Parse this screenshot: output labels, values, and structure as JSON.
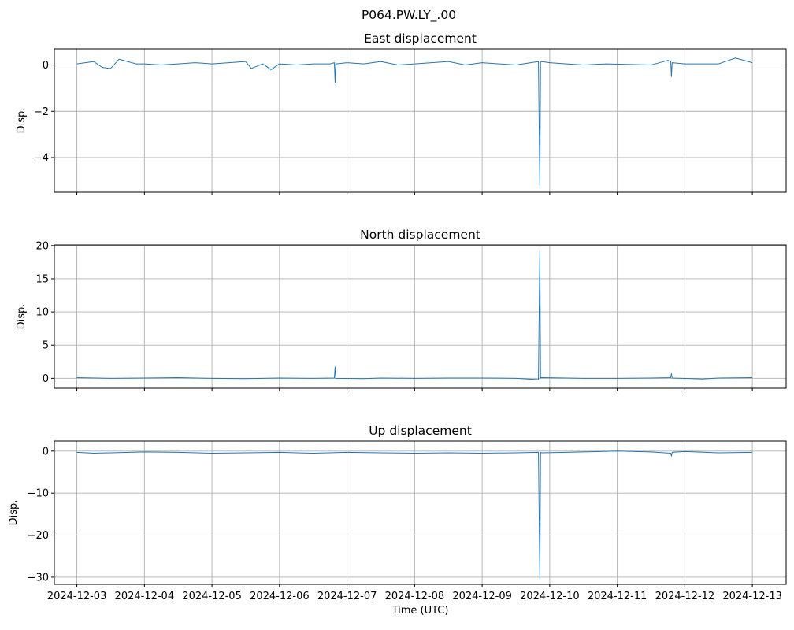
{
  "suptitle": "P064.PW.LY_.00",
  "chart_data": [
    {
      "type": "line",
      "title": "East displacement",
      "xlabel": "",
      "ylabel": "Disp.",
      "xlim": [
        "2024-12-02T16:00",
        "2024-12-13T12:00"
      ],
      "ylim": [
        -5.5,
        0.7
      ],
      "yticks": [
        0,
        -2,
        -4
      ],
      "ytick_labels": [
        "0",
        "−2",
        "−4"
      ],
      "xticks": [
        "2024-12-03",
        "2024-12-04",
        "2024-12-05",
        "2024-12-06",
        "2024-12-07",
        "2024-12-08",
        "2024-12-09",
        "2024-12-10",
        "2024-12-11",
        "2024-12-12",
        "2024-12-13"
      ],
      "grid": true,
      "color": "#1f77b4",
      "series": [
        {
          "x": [
            "2024-12-03T00:00",
            "2024-12-03T03:00",
            "2024-12-03T06:00",
            "2024-12-03T09:00",
            "2024-12-03T12:00",
            "2024-12-03T15:00",
            "2024-12-03T18:00",
            "2024-12-03T21:00",
            "2024-12-04T00:00",
            "2024-12-04T06:00",
            "2024-12-04T12:00",
            "2024-12-04T18:00",
            "2024-12-05T00:00",
            "2024-12-05T06:00",
            "2024-12-05T12:00",
            "2024-12-05T14:00",
            "2024-12-05T18:00",
            "2024-12-05T21:00",
            "2024-12-06T00:00",
            "2024-12-06T06:00",
            "2024-12-06T12:00",
            "2024-12-06T18:00",
            "2024-12-06T19:30",
            "2024-12-06T19:45",
            "2024-12-06T20:00",
            "2024-12-07T00:00",
            "2024-12-07T06:00",
            "2024-12-07T12:00",
            "2024-12-07T18:00",
            "2024-12-08T00:00",
            "2024-12-08T06:00",
            "2024-12-08T12:00",
            "2024-12-08T18:00",
            "2024-12-09T00:00",
            "2024-12-09T06:00",
            "2024-12-09T12:00",
            "2024-12-09T20:00",
            "2024-12-09T20:30",
            "2024-12-09T20:45",
            "2024-12-09T21:00",
            "2024-12-10T00:00",
            "2024-12-10T06:00",
            "2024-12-10T12:00",
            "2024-12-10T20:00",
            "2024-12-11T12:00",
            "2024-12-11T18:00",
            "2024-12-11T19:00",
            "2024-12-11T19:15",
            "2024-12-11T19:30",
            "2024-12-12T00:00",
            "2024-12-12T12:00",
            "2024-12-12T18:00",
            "2024-12-13T00:00"
          ],
          "y": [
            0.05,
            0.1,
            0.15,
            -0.1,
            -0.15,
            0.25,
            0.15,
            0.05,
            0.05,
            0.0,
            0.05,
            0.1,
            0.05,
            0.1,
            0.15,
            -0.15,
            0.05,
            -0.2,
            0.05,
            0.0,
            0.05,
            0.05,
            0.1,
            -0.75,
            0.05,
            0.1,
            0.05,
            0.15,
            0.0,
            0.05,
            0.1,
            0.15,
            0.0,
            0.1,
            0.05,
            0.0,
            0.15,
            -5.25,
            0.1,
            0.15,
            0.1,
            0.05,
            0.0,
            0.05,
            0.0,
            0.2,
            0.15,
            -0.5,
            0.1,
            0.05,
            0.05,
            0.3,
            0.1
          ]
        }
      ]
    },
    {
      "type": "line",
      "title": "North displacement",
      "xlabel": "",
      "ylabel": "Disp.",
      "xlim": [
        "2024-12-02T16:00",
        "2024-12-13T12:00"
      ],
      "ylim": [
        -1.5,
        20.1
      ],
      "yticks": [
        0,
        5,
        10,
        15,
        20
      ],
      "ytick_labels": [
        "0",
        "5",
        "10",
        "15",
        "20"
      ],
      "xticks": [
        "2024-12-03",
        "2024-12-04",
        "2024-12-05",
        "2024-12-06",
        "2024-12-07",
        "2024-12-08",
        "2024-12-09",
        "2024-12-10",
        "2024-12-11",
        "2024-12-12",
        "2024-12-13"
      ],
      "grid": true,
      "color": "#1f77b4",
      "series": [
        {
          "x": [
            "2024-12-03T00:00",
            "2024-12-03T12:00",
            "2024-12-04T00:00",
            "2024-12-04T12:00",
            "2024-12-05T00:00",
            "2024-12-05T12:00",
            "2024-12-06T00:00",
            "2024-12-06T12:00",
            "2024-12-06T19:30",
            "2024-12-06T19:45",
            "2024-12-06T20:00",
            "2024-12-07T06:00",
            "2024-12-07T12:00",
            "2024-12-08T00:00",
            "2024-12-08T12:00",
            "2024-12-09T00:00",
            "2024-12-09T12:00",
            "2024-12-09T20:00",
            "2024-12-09T20:30",
            "2024-12-09T20:45",
            "2024-12-09T21:00",
            "2024-12-10T06:00",
            "2024-12-10T12:00",
            "2024-12-11T00:00",
            "2024-12-11T12:00",
            "2024-12-11T19:00",
            "2024-12-11T19:15",
            "2024-12-11T19:30",
            "2024-12-12T06:00",
            "2024-12-12T12:00",
            "2024-12-13T00:00"
          ],
          "y": [
            0.1,
            0.0,
            0.05,
            0.1,
            0.0,
            -0.05,
            0.05,
            0.0,
            0.05,
            1.7,
            0.0,
            -0.05,
            0.05,
            0.0,
            0.05,
            0.05,
            0.0,
            -0.2,
            19.2,
            0.05,
            0.1,
            0.05,
            0.0,
            0.0,
            0.05,
            0.1,
            0.7,
            0.05,
            -0.1,
            0.05,
            0.1
          ]
        }
      ]
    },
    {
      "type": "line",
      "title": "Up displacement",
      "xlabel": "Time (UTC)",
      "ylabel": "Disp.",
      "xlim": [
        "2024-12-02T16:00",
        "2024-12-13T12:00"
      ],
      "ylim": [
        -31.7,
        2.4
      ],
      "yticks": [
        0,
        -10,
        -20,
        -30
      ],
      "ytick_labels": [
        "0",
        "−10",
        "−20",
        "−30"
      ],
      "xticks": [
        "2024-12-03",
        "2024-12-04",
        "2024-12-05",
        "2024-12-06",
        "2024-12-07",
        "2024-12-08",
        "2024-12-09",
        "2024-12-10",
        "2024-12-11",
        "2024-12-12",
        "2024-12-13"
      ],
      "xtick_labels": [
        "2024-12-03",
        "2024-12-04",
        "2024-12-05",
        "2024-12-06",
        "2024-12-07",
        "2024-12-08",
        "2024-12-09",
        "2024-12-10",
        "2024-12-11",
        "2024-12-12",
        "2024-12-13"
      ],
      "grid": true,
      "color": "#1f77b4",
      "series": [
        {
          "x": [
            "2024-12-03T00:00",
            "2024-12-03T06:00",
            "2024-12-03T12:00",
            "2024-12-04T00:00",
            "2024-12-04T12:00",
            "2024-12-05T00:00",
            "2024-12-05T12:00",
            "2024-12-06T00:00",
            "2024-12-06T12:00",
            "2024-12-07T00:00",
            "2024-12-07T12:00",
            "2024-12-08T00:00",
            "2024-12-08T12:00",
            "2024-12-09T00:00",
            "2024-12-09T12:00",
            "2024-12-09T20:00",
            "2024-12-09T20:30",
            "2024-12-09T20:45",
            "2024-12-09T21:00",
            "2024-12-10T06:00",
            "2024-12-10T12:00",
            "2024-12-11T00:00",
            "2024-12-11T12:00",
            "2024-12-11T19:00",
            "2024-12-11T19:15",
            "2024-12-11T19:30",
            "2024-12-12T00:00",
            "2024-12-12T12:00",
            "2024-12-13T00:00"
          ],
          "y": [
            -0.3,
            -0.5,
            -0.4,
            -0.2,
            -0.3,
            -0.5,
            -0.4,
            -0.3,
            -0.5,
            -0.3,
            -0.4,
            -0.5,
            -0.4,
            -0.5,
            -0.4,
            -0.3,
            -30.2,
            -0.3,
            -0.4,
            -0.3,
            -0.2,
            0.0,
            -0.2,
            -0.5,
            -1.2,
            -0.3,
            -0.1,
            -0.4,
            -0.3
          ]
        }
      ]
    }
  ]
}
